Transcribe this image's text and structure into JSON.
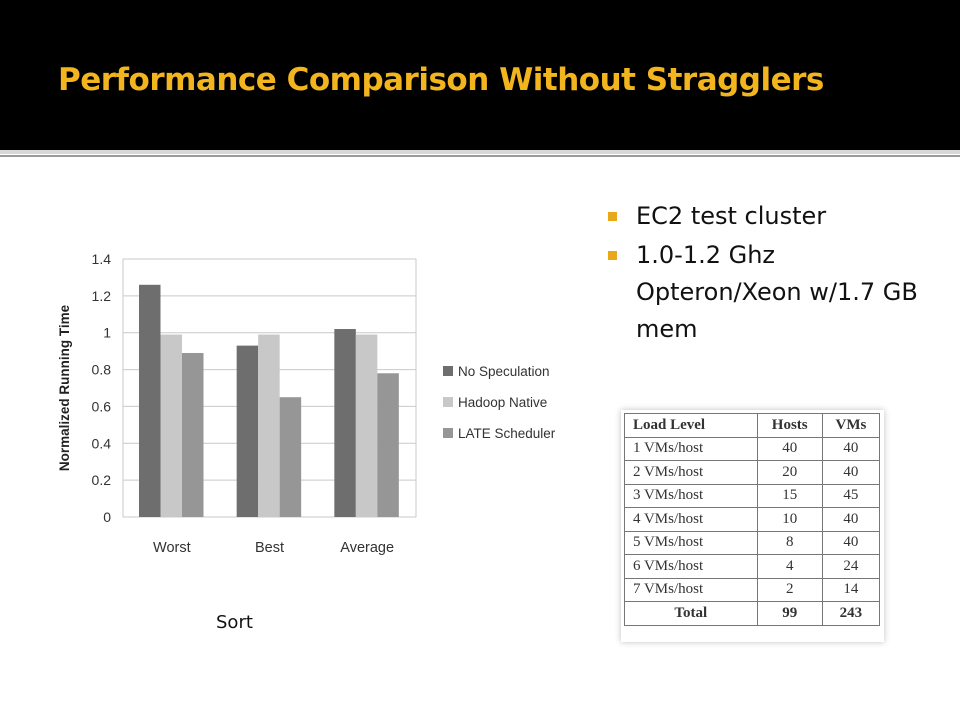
{
  "slide": {
    "title": "Performance Comparison Without Stragglers",
    "bullets": [
      "EC2 test cluster",
      "1.0-1.2 Ghz Opteron/Xeon w/1.7 GB mem"
    ],
    "caption": "Sort",
    "accent": "#f2b51e"
  },
  "chart_data": {
    "type": "bar",
    "categories": [
      "Worst",
      "Best",
      "Average"
    ],
    "series": [
      {
        "name": "No Speculation",
        "values": [
          1.26,
          0.93,
          1.02
        ],
        "color": "#6e6e6e"
      },
      {
        "name": "Hadoop Native",
        "values": [
          0.99,
          0.99,
          0.99
        ],
        "color": "#c8c8c8"
      },
      {
        "name": "LATE Scheduler",
        "values": [
          0.89,
          0.65,
          0.78
        ],
        "color": "#969696"
      }
    ],
    "ylabel": "Normalized Running Time",
    "yticks": [
      "0",
      "0.2",
      "0.4",
      "0.6",
      "0.8",
      "1",
      "1.2",
      "1.4"
    ],
    "ylim": [
      0,
      1.4
    ],
    "grid": true,
    "legend": "right"
  },
  "table": {
    "headers": [
      "Load Level",
      "Hosts",
      "VMs"
    ],
    "rows": [
      [
        "1 VMs/host",
        "40",
        "40"
      ],
      [
        "2 VMs/host",
        "20",
        "40"
      ],
      [
        "3 VMs/host",
        "15",
        "45"
      ],
      [
        "4 VMs/host",
        "10",
        "40"
      ],
      [
        "5 VMs/host",
        "8",
        "40"
      ],
      [
        "6 VMs/host",
        "4",
        "24"
      ],
      [
        "7 VMs/host",
        "2",
        "14"
      ]
    ],
    "total": [
      "Total",
      "99",
      "243"
    ]
  }
}
